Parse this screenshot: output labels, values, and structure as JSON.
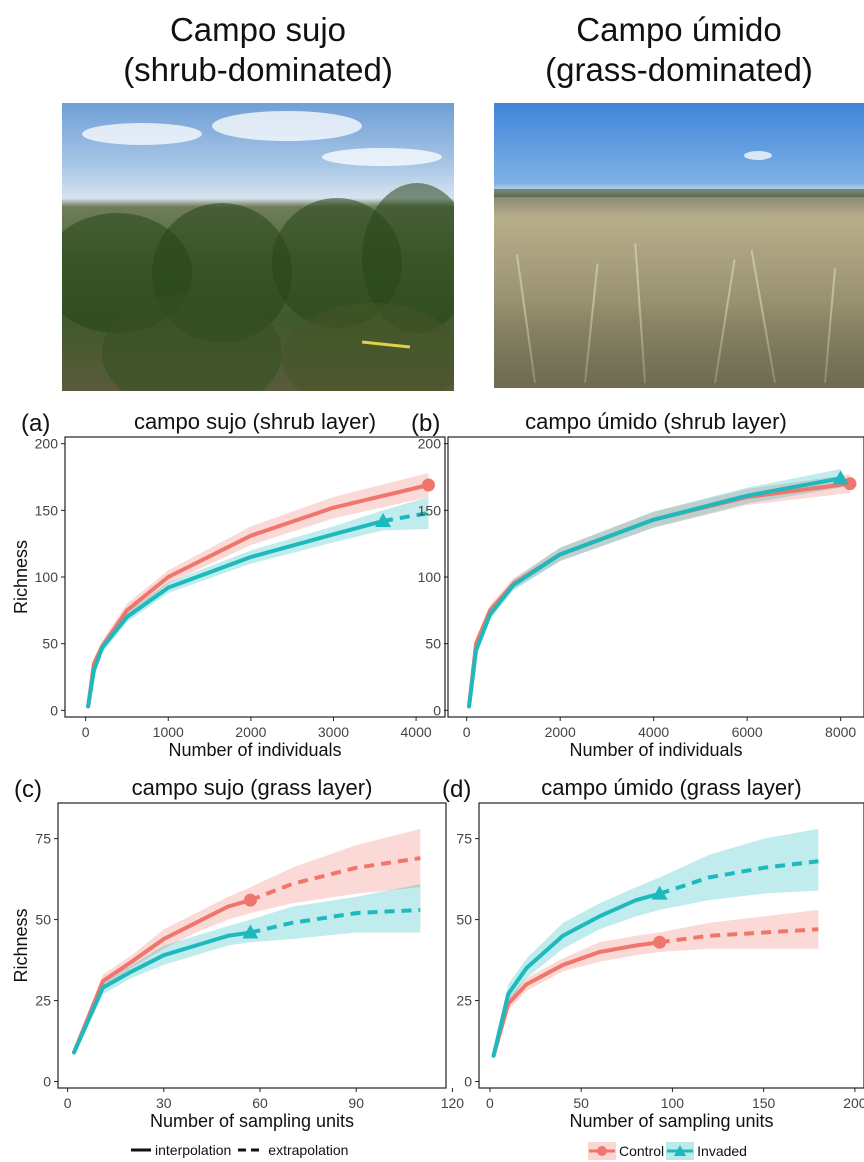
{
  "photos": {
    "left": {
      "title_line1": "Campo sujo",
      "title_line2": "(shrub-dominated)"
    },
    "right": {
      "title_line1": "Campo úmido",
      "title_line2": "(grass-dominated)"
    }
  },
  "colors": {
    "control": "#F0766D",
    "invaded": "#1EB9BD"
  },
  "legend": {
    "interpolation": "interpolation",
    "extrapolation": "extrapolation",
    "control": "Control",
    "invaded": "Invaded"
  },
  "chart_data": [
    {
      "type": "line",
      "panel": "(a)",
      "title": "campo sujo (shrub layer)",
      "xlabel": "Number of individuals",
      "ylabel": "Richness",
      "xlim": [
        -250,
        4350
      ],
      "ylim": [
        -5,
        205
      ],
      "xticks": [
        0,
        1000,
        2000,
        3000,
        4000
      ],
      "yticks": [
        0,
        50,
        100,
        150,
        200
      ],
      "series": [
        {
          "name": "Control",
          "color": "control",
          "marker": "circle",
          "interp": [
            [
              30,
              3
            ],
            [
              100,
              35
            ],
            [
              200,
              48
            ],
            [
              500,
              75
            ],
            [
              1000,
              100
            ],
            [
              2000,
              131
            ],
            [
              3000,
              152
            ],
            [
              4150,
              169
            ]
          ],
          "extrap": [],
          "ci_low": [
            [
              30,
              2
            ],
            [
              100,
              31
            ],
            [
              200,
              44
            ],
            [
              500,
              70
            ],
            [
              1000,
              95
            ],
            [
              2000,
              124
            ],
            [
              3000,
              144
            ],
            [
              4150,
              160
            ]
          ],
          "ci_high": [
            [
              30,
              4
            ],
            [
              100,
              39
            ],
            [
              200,
              52
            ],
            [
              500,
              80
            ],
            [
              1000,
              105
            ],
            [
              2000,
              138
            ],
            [
              3000,
              160
            ],
            [
              4150,
              178
            ]
          ],
          "observed": [
            4150,
            169
          ]
        },
        {
          "name": "Invaded",
          "color": "invaded",
          "marker": "triangle",
          "interp": [
            [
              30,
              3
            ],
            [
              100,
              30
            ],
            [
              200,
              47
            ],
            [
              500,
              70
            ],
            [
              1000,
              92
            ],
            [
              2000,
              115
            ],
            [
              3000,
              132
            ],
            [
              3600,
              142
            ]
          ],
          "extrap": [
            [
              3600,
              142
            ],
            [
              4150,
              148
            ]
          ],
          "ci_low": [
            [
              30,
              2
            ],
            [
              100,
              27
            ],
            [
              200,
              43
            ],
            [
              500,
              66
            ],
            [
              1000,
              88
            ],
            [
              2000,
              110
            ],
            [
              3000,
              126
            ],
            [
              3600,
              135
            ],
            [
              4150,
              136
            ]
          ],
          "ci_high": [
            [
              30,
              4
            ],
            [
              100,
              33
            ],
            [
              200,
              51
            ],
            [
              500,
              74
            ],
            [
              1000,
              96
            ],
            [
              2000,
              120
            ],
            [
              3000,
              138
            ],
            [
              3600,
              150
            ],
            [
              4150,
              160
            ]
          ],
          "observed": [
            3600,
            142
          ]
        }
      ]
    },
    {
      "type": "line",
      "panel": "(b)",
      "title": "campo úmido (shrub layer)",
      "xlabel": "Number of individuals",
      "ylabel": "",
      "xlim": [
        -400,
        8500
      ],
      "ylim": [
        -5,
        205
      ],
      "xticks": [
        0,
        2000,
        4000,
        6000,
        8000
      ],
      "yticks": [
        0,
        50,
        100,
        150,
        200
      ],
      "series": [
        {
          "name": "Control",
          "color": "control",
          "marker": "circle",
          "interp": [
            [
              50,
              3
            ],
            [
              200,
              50
            ],
            [
              500,
              75
            ],
            [
              1000,
              95
            ],
            [
              2000,
              117
            ],
            [
              4000,
              143
            ],
            [
              6000,
              160
            ],
            [
              8200,
              170
            ]
          ],
          "extrap": [],
          "ci_low": [
            [
              50,
              2
            ],
            [
              200,
              46
            ],
            [
              500,
              71
            ],
            [
              1000,
              91
            ],
            [
              2000,
              112
            ],
            [
              4000,
              137
            ],
            [
              6000,
              154
            ],
            [
              8200,
              163
            ]
          ],
          "ci_high": [
            [
              50,
              4
            ],
            [
              200,
              54
            ],
            [
              500,
              79
            ],
            [
              1000,
              99
            ],
            [
              2000,
              122
            ],
            [
              4000,
              149
            ],
            [
              6000,
              166
            ],
            [
              8200,
              177
            ]
          ],
          "observed": [
            8200,
            170
          ]
        },
        {
          "name": "Invaded",
          "color": "invaded",
          "marker": "triangle",
          "interp": [
            [
              50,
              3
            ],
            [
              200,
              45
            ],
            [
              500,
              72
            ],
            [
              1000,
              94
            ],
            [
              2000,
              117
            ],
            [
              4000,
              143
            ],
            [
              6000,
              161
            ],
            [
              8000,
              174
            ]
          ],
          "extrap": [],
          "ci_low": [
            [
              50,
              2
            ],
            [
              200,
              41
            ],
            [
              500,
              68
            ],
            [
              1000,
              90
            ],
            [
              2000,
              112
            ],
            [
              4000,
              137
            ],
            [
              6000,
              155
            ],
            [
              8000,
              167
            ]
          ],
          "ci_high": [
            [
              50,
              4
            ],
            [
              200,
              49
            ],
            [
              500,
              76
            ],
            [
              1000,
              98
            ],
            [
              2000,
              122
            ],
            [
              4000,
              149
            ],
            [
              6000,
              167
            ],
            [
              8000,
              181
            ]
          ],
          "observed": [
            8000,
            174
          ]
        }
      ]
    },
    {
      "type": "line",
      "panel": "(c)",
      "title": "campo sujo (grass layer)",
      "xlabel": "Number of sampling units",
      "ylabel": "Richness",
      "xlim": [
        -3,
        118
      ],
      "ylim": [
        -2,
        86
      ],
      "xticks": [
        0,
        30,
        60,
        90,
        120
      ],
      "yticks": [
        0,
        25,
        50,
        75
      ],
      "series": [
        {
          "name": "Control",
          "color": "control",
          "marker": "circle",
          "interp": [
            [
              2,
              9
            ],
            [
              11,
              31
            ],
            [
              20,
              37
            ],
            [
              30,
              44
            ],
            [
              40,
              49
            ],
            [
              50,
              54
            ],
            [
              57,
              56
            ]
          ],
          "extrap": [
            [
              57,
              56
            ],
            [
              70,
              61
            ],
            [
              90,
              66
            ],
            [
              110,
              69
            ]
          ],
          "ci_low": [
            [
              2,
              8
            ],
            [
              11,
              29
            ],
            [
              20,
              35
            ],
            [
              30,
              41
            ],
            [
              40,
              46
            ],
            [
              50,
              50
            ],
            [
              57,
              52
            ],
            [
              70,
              55
            ],
            [
              90,
              58
            ],
            [
              110,
              60
            ]
          ],
          "ci_high": [
            [
              2,
              10
            ],
            [
              11,
              33
            ],
            [
              20,
              39
            ],
            [
              30,
              47
            ],
            [
              40,
              52
            ],
            [
              50,
              57
            ],
            [
              57,
              60
            ],
            [
              70,
              66
            ],
            [
              90,
              73
            ],
            [
              110,
              78
            ]
          ],
          "observed": [
            57,
            56
          ]
        },
        {
          "name": "Invaded",
          "color": "invaded",
          "marker": "triangle",
          "interp": [
            [
              2,
              9
            ],
            [
              11,
              29
            ],
            [
              20,
              34
            ],
            [
              30,
              39
            ],
            [
              40,
              42
            ],
            [
              50,
              45
            ],
            [
              57,
              46
            ]
          ],
          "extrap": [
            [
              57,
              46
            ],
            [
              70,
              49
            ],
            [
              90,
              52
            ],
            [
              110,
              53
            ]
          ],
          "ci_low": [
            [
              2,
              8
            ],
            [
              11,
              27
            ],
            [
              20,
              32
            ],
            [
              30,
              36
            ],
            [
              40,
              39
            ],
            [
              50,
              42
            ],
            [
              57,
              43
            ],
            [
              70,
              44
            ],
            [
              90,
              46
            ],
            [
              110,
              46
            ]
          ],
          "ci_high": [
            [
              2,
              10
            ],
            [
              11,
              31
            ],
            [
              20,
              36
            ],
            [
              30,
              42
            ],
            [
              40,
              45
            ],
            [
              50,
              48
            ],
            [
              57,
              50
            ],
            [
              70,
              54
            ],
            [
              90,
              57
            ],
            [
              110,
              61
            ]
          ],
          "observed": [
            57,
            46
          ]
        }
      ]
    },
    {
      "type": "line",
      "panel": "(d)",
      "title": "campo úmido (grass layer)",
      "xlabel": "Number of sampling units",
      "ylabel": "",
      "xlim": [
        -6,
        205
      ],
      "ylim": [
        -2,
        86
      ],
      "xticks": [
        0,
        50,
        100,
        150,
        200
      ],
      "yticks": [
        0,
        25,
        50,
        75
      ],
      "series": [
        {
          "name": "Control",
          "color": "control",
          "marker": "circle",
          "interp": [
            [
              2,
              8
            ],
            [
              10,
              24
            ],
            [
              20,
              30
            ],
            [
              40,
              36
            ],
            [
              60,
              40
            ],
            [
              80,
              42
            ],
            [
              93,
              43
            ]
          ],
          "extrap": [
            [
              93,
              43
            ],
            [
              120,
              45
            ],
            [
              150,
              46
            ],
            [
              180,
              47
            ]
          ],
          "ci_low": [
            [
              2,
              7
            ],
            [
              10,
              22
            ],
            [
              20,
              28
            ],
            [
              40,
              34
            ],
            [
              60,
              37
            ],
            [
              80,
              39
            ],
            [
              93,
              40
            ],
            [
              120,
              41
            ],
            [
              150,
              41
            ],
            [
              180,
              41
            ]
          ],
          "ci_high": [
            [
              2,
              9
            ],
            [
              10,
              26
            ],
            [
              20,
              32
            ],
            [
              40,
              38
            ],
            [
              60,
              43
            ],
            [
              80,
              45
            ],
            [
              93,
              46
            ],
            [
              120,
              49
            ],
            [
              150,
              51
            ],
            [
              180,
              53
            ]
          ],
          "observed": [
            93,
            43
          ]
        },
        {
          "name": "Invaded",
          "color": "invaded",
          "marker": "triangle",
          "interp": [
            [
              2,
              8
            ],
            [
              10,
              27
            ],
            [
              20,
              35
            ],
            [
              40,
              45
            ],
            [
              60,
              51
            ],
            [
              80,
              56
            ],
            [
              93,
              58
            ]
          ],
          "extrap": [
            [
              93,
              58
            ],
            [
              120,
              63
            ],
            [
              150,
              66
            ],
            [
              180,
              68
            ]
          ],
          "ci_low": [
            [
              2,
              7
            ],
            [
              10,
              24
            ],
            [
              20,
              32
            ],
            [
              40,
              41
            ],
            [
              60,
              47
            ],
            [
              80,
              51
            ],
            [
              93,
              53
            ],
            [
              120,
              56
            ],
            [
              150,
              58
            ],
            [
              180,
              59
            ]
          ],
          "ci_high": [
            [
              2,
              9
            ],
            [
              10,
              30
            ],
            [
              20,
              38
            ],
            [
              40,
              49
            ],
            [
              60,
              55
            ],
            [
              80,
              60
            ],
            [
              93,
              63
            ],
            [
              120,
              70
            ],
            [
              150,
              75
            ],
            [
              180,
              78
            ]
          ],
          "observed": [
            93,
            58
          ]
        }
      ]
    }
  ]
}
